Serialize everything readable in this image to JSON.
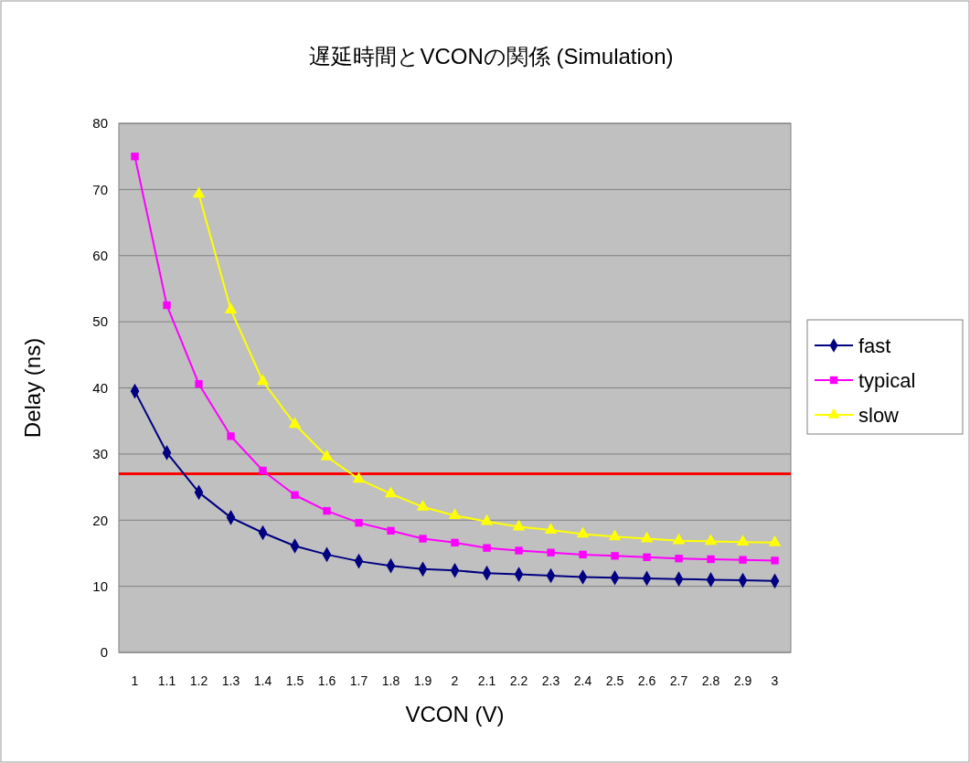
{
  "chart_data": {
    "type": "line",
    "title": "遅延時間とVCONの関係 (Simulation)",
    "xlabel": "VCON (V)",
    "ylabel": "Delay (ns)",
    "categories": [
      "1",
      "1.1",
      "1.2",
      "1.3",
      "1.4",
      "1.5",
      "1.6",
      "1.7",
      "1.8",
      "1.9",
      "2",
      "2.1",
      "2.2",
      "2.3",
      "2.4",
      "2.5",
      "2.6",
      "2.7",
      "2.8",
      "2.9",
      "3"
    ],
    "ylim": [
      0,
      80
    ],
    "yticks": [
      0,
      10,
      20,
      30,
      40,
      50,
      60,
      70,
      80
    ],
    "grid": "y",
    "legend": "right",
    "series": [
      {
        "name": "fast",
        "color": "#000080",
        "marker": "diamond",
        "values": [
          39.5,
          30.2,
          24.2,
          20.4,
          18.1,
          16.1,
          14.8,
          13.8,
          13.1,
          12.6,
          12.4,
          12.0,
          11.8,
          11.6,
          11.4,
          11.3,
          11.2,
          11.1,
          11.0,
          10.9,
          10.8
        ]
      },
      {
        "name": "typical",
        "color": "#ff00ff",
        "marker": "square",
        "values": [
          75,
          52.5,
          40.6,
          32.7,
          27.5,
          23.8,
          21.4,
          19.6,
          18.4,
          17.2,
          16.6,
          15.8,
          15.4,
          15.1,
          14.8,
          14.6,
          14.4,
          14.2,
          14.1,
          14.0,
          13.9
        ]
      },
      {
        "name": "slow",
        "color": "#ffff00",
        "marker": "triangle",
        "values": [
          null,
          null,
          69.3,
          51.8,
          41.0,
          34.5,
          29.6,
          26.2,
          24.0,
          22.0,
          20.7,
          19.8,
          19.0,
          18.5,
          17.9,
          17.5,
          17.2,
          16.9,
          16.8,
          16.7,
          16.6
        ]
      }
    ],
    "ref_lines": [
      {
        "axis": "y",
        "value": 27,
        "color": "#ff0000"
      }
    ]
  }
}
